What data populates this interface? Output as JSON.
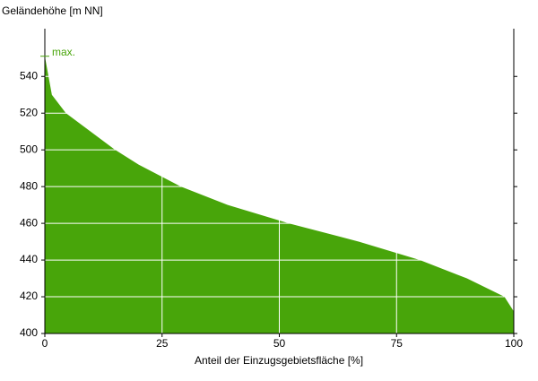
{
  "chart_data": {
    "type": "area",
    "y_label": "Geländehöhe [m NN]",
    "x_label": "Anteil der Einzugsgebietsfläche [%]",
    "x": [
      0,
      1.5,
      4.5,
      15,
      20,
      29,
      39,
      52,
      67,
      80,
      90,
      98,
      100
    ],
    "series": [
      {
        "color": "#48a50a",
        "values": [
          551,
          530,
          520,
          500,
          492,
          480,
          470,
          460,
          450,
          440,
          430,
          420,
          412
        ]
      }
    ],
    "max_label": "max.",
    "max_value": 551,
    "max_color": "#48a50a",
    "xlim": [
      0,
      100
    ],
    "xticks": [
      0,
      25,
      50,
      75,
      100
    ],
    "ylim": [
      400,
      566
    ],
    "yticks": [
      400,
      420,
      440,
      460,
      480,
      500,
      520,
      540
    ],
    "grid": true
  }
}
